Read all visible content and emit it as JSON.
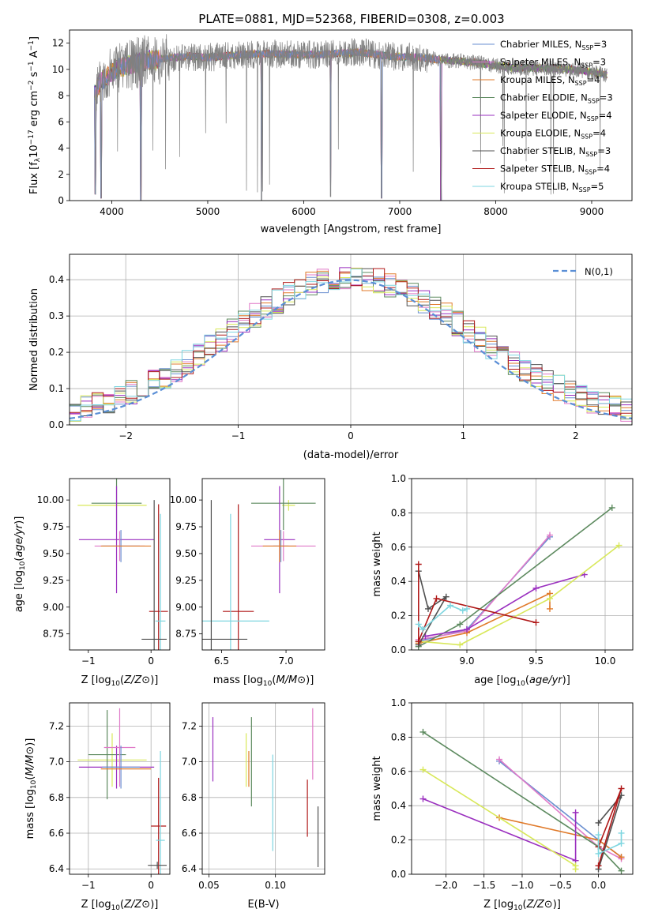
{
  "figure_title": "PLATE=0881, MJD=52368, FIBERID=0308, z=0.003",
  "colors": {
    "chabrier_miles": "#6a8fd0",
    "salpeter_miles": "#e07ac8",
    "kroupa_miles": "#e07a2a",
    "chabrier_elodie": "#5d8a5f",
    "salpeter_elodie": "#9a2fbf",
    "kroupa_elodie": "#d8e85a",
    "chabrier_stelib": "#505050",
    "salpeter_stelib": "#b01818",
    "kroupa_stelib": "#7ed6e0",
    "data": "#808080",
    "normal": "#5b8fd6"
  },
  "legend_main": [
    {
      "key": "chabrier_miles",
      "label": "Chabrier MILES, N",
      "sub": "SSP",
      "tail": "=3"
    },
    {
      "key": "salpeter_miles",
      "label": "Salpeter MILES, N",
      "sub": "SSP",
      "tail": "=3"
    },
    {
      "key": "kroupa_miles",
      "label": "Kroupa MILES, N",
      "sub": "SSP",
      "tail": "=4"
    },
    {
      "key": "chabrier_elodie",
      "label": "Chabrier ELODIE, N",
      "sub": "SSP",
      "tail": "=3"
    },
    {
      "key": "salpeter_elodie",
      "label": "Salpeter ELODIE, N",
      "sub": "SSP",
      "tail": "=4"
    },
    {
      "key": "kroupa_elodie",
      "label": "Kroupa ELODIE, N",
      "sub": "SSP",
      "tail": "=4"
    },
    {
      "key": "chabrier_stelib",
      "label": "Chabrier STELIB, N",
      "sub": "SSP",
      "tail": "=3"
    },
    {
      "key": "salpeter_stelib",
      "label": "Salpeter STELIB, N",
      "sub": "SSP",
      "tail": "=4"
    },
    {
      "key": "kroupa_stelib",
      "label": "Kroupa STELIB, N",
      "sub": "SSP",
      "tail": "=5"
    }
  ],
  "chart_data": [
    {
      "id": "spectrum",
      "type": "line",
      "xlabel": "wavelength [Angstrom, rest frame]",
      "ylabel_parts": {
        "a": "Flux [f",
        "b": "λ",
        "c": "10",
        "d": "−17",
        "e": " erg cm",
        "f": "−2",
        "g": " s",
        "h": "−1",
        "i": " A",
        "j": "−1",
        "k": "]"
      },
      "xlim": [
        3560,
        9420
      ],
      "ylim": [
        0,
        13
      ],
      "xticks": [
        4000,
        5000,
        6000,
        7000,
        8000,
        9000
      ],
      "yticks": [
        0,
        2,
        4,
        6,
        8,
        10,
        12
      ],
      "continuum": [
        [
          3820,
          8.2
        ],
        [
          3900,
          9.2
        ],
        [
          4000,
          9.8
        ],
        [
          4100,
          10.2
        ],
        [
          4300,
          10.6
        ],
        [
          4500,
          10.8
        ],
        [
          4800,
          11.0
        ],
        [
          5000,
          10.9
        ],
        [
          5300,
          11.1
        ],
        [
          5600,
          11.2
        ],
        [
          6000,
          11.1
        ],
        [
          6300,
          11.2
        ],
        [
          6600,
          11.3
        ],
        [
          6900,
          11.0
        ],
        [
          7200,
          10.9
        ],
        [
          7500,
          10.7
        ],
        [
          7800,
          10.5
        ],
        [
          8200,
          10.1
        ],
        [
          8600,
          10.1
        ],
        [
          8900,
          9.9
        ],
        [
          9150,
          9.6
        ]
      ],
      "absorption_dips": [
        [
          3830,
          0.5
        ],
        [
          3890,
          0.2
        ],
        [
          4305,
          0.0
        ],
        [
          5560,
          0.0
        ],
        [
          6280,
          0.3
        ],
        [
          6810,
          0.2
        ],
        [
          7430,
          0.0
        ]
      ]
    },
    {
      "id": "residuals",
      "type": "step",
      "xlabel": "(data-model)/error",
      "ylabel": "Normed distribution",
      "xlim": [
        -2.5,
        2.5
      ],
      "ylim": [
        0,
        0.47
      ],
      "xticks": [
        -2,
        -1,
        0,
        1,
        2
      ],
      "yticks": [
        0.0,
        0.1,
        0.2,
        0.3,
        0.4
      ],
      "bin_width": 0.1,
      "legend_label": "N(0,1)"
    },
    {
      "id": "age_vs_Z",
      "type": "errorbar",
      "xlabel": "Z [log10(Z/Z⊙)]",
      "ylabel": "age [log10(age/yr)]",
      "xlim": [
        -1.3,
        0.3
      ],
      "ylim": [
        8.6,
        10.2
      ],
      "xticks": [
        -1,
        0
      ],
      "yticks": [
        8.75,
        9.0,
        9.25,
        9.5,
        9.75,
        10.0
      ],
      "points": [
        {
          "s": "kroupa_elodie",
          "x": -0.62,
          "xe": 0.55,
          "y": 9.95,
          "ye": 0.0
        },
        {
          "s": "chabrier_elodie",
          "x": -0.55,
          "xe": 0.4,
          "y": 9.97,
          "ye": 0.25
        },
        {
          "s": "salpeter_elodie",
          "x": -0.55,
          "xe": 0.6,
          "y": 9.63,
          "ye": 0.5
        },
        {
          "s": "salpeter_miles",
          "x": -0.5,
          "xe": 0.4,
          "y": 9.57,
          "ye": 0.14
        },
        {
          "s": "chabrier_miles",
          "x": -0.48,
          "xe": 0.3,
          "y": 9.57,
          "ye": 0.15
        },
        {
          "s": "kroupa_miles",
          "x": -0.4,
          "xe": 0.4,
          "y": 9.57,
          "ye": 0.0
        },
        {
          "s": "salpeter_stelib",
          "x": 0.12,
          "xe": 0.15,
          "y": 8.96,
          "ye": 1.0
        },
        {
          "s": "kroupa_stelib",
          "x": 0.15,
          "xe": 0.08,
          "y": 8.87,
          "ye": 1.0
        },
        {
          "s": "chabrier_stelib",
          "x": 0.05,
          "xe": 0.2,
          "y": 8.7,
          "ye": 1.3
        }
      ]
    },
    {
      "id": "age_vs_mass",
      "type": "errorbar",
      "xlabel": "mass [log10(M/M⊙)]",
      "ylabel": "",
      "xlim": [
        6.35,
        7.3
      ],
      "ylim": [
        8.6,
        10.2
      ],
      "xticks": [
        6.5,
        7.0
      ],
      "yticks": [
        8.75,
        9.0,
        9.25,
        9.5,
        9.75,
        10.0
      ],
      "points": [
        {
          "s": "kroupa_elodie",
          "x": 7.02,
          "xe": 0.05,
          "y": 9.95,
          "ye": 0.05
        },
        {
          "s": "chabrier_elodie",
          "x": 6.98,
          "xe": 0.25,
          "y": 9.97,
          "ye": 0.25
        },
        {
          "s": "salpeter_elodie",
          "x": 6.95,
          "xe": 0.12,
          "y": 9.63,
          "ye": 0.5
        },
        {
          "s": "salpeter_miles",
          "x": 6.98,
          "xe": 0.25,
          "y": 9.57,
          "ye": 0.14
        },
        {
          "s": "chabrier_miles",
          "x": 6.96,
          "xe": 0.06,
          "y": 9.57,
          "ye": 0.15
        },
        {
          "s": "kroupa_miles",
          "x": 6.95,
          "xe": 0.13,
          "y": 9.57,
          "ye": 0.15
        },
        {
          "s": "salpeter_stelib",
          "x": 6.63,
          "xe": 0.12,
          "y": 8.96,
          "ye": 1.0
        },
        {
          "s": "kroupa_stelib",
          "x": 6.57,
          "xe": 0.3,
          "y": 8.87,
          "ye": 1.0
        },
        {
          "s": "chabrier_stelib",
          "x": 6.42,
          "xe": 0.28,
          "y": 8.7,
          "ye": 1.3
        }
      ]
    },
    {
      "id": "weight_vs_age",
      "type": "line",
      "xlabel": "age [log10(age/yr)]",
      "ylabel": "mass weight",
      "xlim": [
        8.6,
        10.2
      ],
      "ylim": [
        0,
        1
      ],
      "xticks": [
        9.0,
        9.5,
        10.0
      ],
      "yticks": [
        0.0,
        0.2,
        0.4,
        0.6,
        0.8,
        1.0
      ],
      "series": [
        {
          "s": "chabrier_miles",
          "pts": [
            [
              8.65,
              0.05
            ],
            [
              9.0,
              0.12
            ],
            [
              9.6,
              0.66
            ]
          ]
        },
        {
          "s": "salpeter_miles",
          "pts": [
            [
              8.65,
              0.06
            ],
            [
              9.0,
              0.11
            ],
            [
              9.6,
              0.67
            ]
          ]
        },
        {
          "s": "kroupa_miles",
          "pts": [
            [
              8.65,
              0.04
            ],
            [
              9.0,
              0.1
            ],
            [
              9.6,
              0.33
            ],
            [
              9.6,
              0.24
            ]
          ]
        },
        {
          "s": "chabrier_elodie",
          "pts": [
            [
              8.65,
              0.02
            ],
            [
              8.95,
              0.15
            ],
            [
              10.05,
              0.83
            ]
          ]
        },
        {
          "s": "salpeter_elodie",
          "pts": [
            [
              8.7,
              0.08
            ],
            [
              9.0,
              0.12
            ],
            [
              9.5,
              0.36
            ],
            [
              9.85,
              0.44
            ]
          ]
        },
        {
          "s": "kroupa_elodie",
          "pts": [
            [
              8.65,
              0.05
            ],
            [
              8.95,
              0.03
            ],
            [
              9.6,
              0.3
            ],
            [
              10.1,
              0.61
            ]
          ]
        },
        {
          "s": "chabrier_stelib",
          "pts": [
            [
              8.65,
              0.46
            ],
            [
              8.72,
              0.24
            ],
            [
              8.85,
              0.31
            ],
            [
              8.65,
              0.03
            ]
          ]
        },
        {
          "s": "salpeter_stelib",
          "pts": [
            [
              8.65,
              0.5
            ],
            [
              8.65,
              0.05
            ],
            [
              8.78,
              0.3
            ],
            [
              9.5,
              0.16
            ]
          ]
        },
        {
          "s": "kroupa_stelib",
          "pts": [
            [
              8.65,
              0.15
            ],
            [
              8.68,
              0.12
            ],
            [
              8.88,
              0.26
            ],
            [
              8.97,
              0.23
            ],
            [
              9.0,
              0.24
            ]
          ]
        }
      ]
    },
    {
      "id": "mass_vs_Z",
      "type": "errorbar",
      "xlabel": "Z [log10(Z/Z⊙)]",
      "ylabel": "mass [log10(M/M⊙)]",
      "xlim": [
        -1.3,
        0.3
      ],
      "ylim": [
        6.37,
        7.33
      ],
      "xticks": [
        -1,
        0
      ],
      "yticks": [
        6.4,
        6.6,
        6.8,
        7.0,
        7.2
      ],
      "points": [
        {
          "s": "kroupa_elodie",
          "x": -0.62,
          "xe": 0.55,
          "y": 7.01,
          "ye": 0.15
        },
        {
          "s": "chabrier_elodie",
          "x": -0.7,
          "xe": 0.3,
          "y": 7.04,
          "ye": 0.25
        },
        {
          "s": "salpeter_elodie",
          "x": -0.55,
          "xe": 0.6,
          "y": 6.97,
          "ye": 0.12
        },
        {
          "s": "salpeter_miles",
          "x": -0.5,
          "xe": 0.25,
          "y": 7.08,
          "ye": 0.22
        },
        {
          "s": "chabrier_miles",
          "x": -0.48,
          "xe": 0.3,
          "y": 6.97,
          "ye": 0.12
        },
        {
          "s": "kroupa_miles",
          "x": -0.4,
          "xe": 0.4,
          "y": 6.96,
          "ye": 0.0
        },
        {
          "s": "salpeter_stelib",
          "x": 0.12,
          "xe": 0.12,
          "y": 6.64,
          "ye": 0.27
        },
        {
          "s": "kroupa_stelib",
          "x": 0.15,
          "xe": 0.07,
          "y": 6.56,
          "ye": 0.5
        },
        {
          "s": "chabrier_stelib",
          "x": 0.1,
          "xe": 0.15,
          "y": 6.42,
          "ye": 0.02
        }
      ]
    },
    {
      "id": "mass_vs_ebv",
      "type": "errorbar",
      "xlabel": "E(B-V)",
      "ylabel": "",
      "xlim": [
        0.045,
        0.137
      ],
      "ylim": [
        6.37,
        7.33
      ],
      "xticks": [
        0.05,
        0.1
      ],
      "yticks": [
        6.4,
        6.6,
        6.8,
        7.0,
        7.2
      ],
      "points": [
        {
          "s": "salpeter_elodie",
          "x": 0.053,
          "xe": 0.0,
          "y": 7.07,
          "ye": 0.18
        },
        {
          "s": "kroupa_elodie",
          "x": 0.078,
          "xe": 0.0,
          "y": 7.01,
          "ye": 0.15
        },
        {
          "s": "kroupa_miles",
          "x": 0.08,
          "xe": 0.0,
          "y": 6.96,
          "ye": 0.1
        },
        {
          "s": "chabrier_elodie",
          "x": 0.082,
          "xe": 0.0,
          "y": 7.0,
          "ye": 0.25
        },
        {
          "s": "kroupa_stelib",
          "x": 0.098,
          "xe": 0.0,
          "y": 6.77,
          "ye": 0.27
        },
        {
          "s": "salpeter_stelib",
          "x": 0.124,
          "xe": 0.0,
          "y": 6.74,
          "ye": 0.16
        },
        {
          "s": "salpeter_miles",
          "x": 0.128,
          "xe": 0.0,
          "y": 7.1,
          "ye": 0.2
        },
        {
          "s": "chabrier_stelib",
          "x": 0.132,
          "xe": 0.0,
          "y": 6.58,
          "ye": 0.17
        }
      ]
    },
    {
      "id": "weight_vs_Z",
      "type": "line",
      "xlabel": "Z [log10(Z/Z⊙)]",
      "ylabel": "mass weight",
      "xlim": [
        -2.45,
        0.45
      ],
      "ylim": [
        0,
        1
      ],
      "xticks": [
        -2.0,
        -1.5,
        -1.0,
        -0.5,
        0.0
      ],
      "yticks": [
        0.0,
        0.2,
        0.4,
        0.6,
        0.8,
        1.0
      ],
      "series": [
        {
          "s": "chabrier_miles",
          "pts": [
            [
              -1.3,
              0.66
            ],
            [
              0.0,
              0.2
            ],
            [
              0.3,
              0.1
            ]
          ]
        },
        {
          "s": "salpeter_miles",
          "pts": [
            [
              -1.3,
              0.67
            ],
            [
              0.0,
              0.16
            ],
            [
              0.3,
              0.09
            ]
          ]
        },
        {
          "s": "kroupa_miles",
          "pts": [
            [
              -1.3,
              0.33
            ],
            [
              0.0,
              0.2
            ],
            [
              0.3,
              0.1
            ]
          ]
        },
        {
          "s": "chabrier_elodie",
          "pts": [
            [
              -2.3,
              0.83
            ],
            [
              0.0,
              0.16
            ],
            [
              0.3,
              0.02
            ]
          ]
        },
        {
          "s": "salpeter_elodie",
          "pts": [
            [
              -2.3,
              0.44
            ],
            [
              -0.3,
              0.08
            ],
            [
              -0.3,
              0.36
            ]
          ]
        },
        {
          "s": "kroupa_elodie",
          "pts": [
            [
              -2.3,
              0.61
            ],
            [
              -0.3,
              0.05
            ],
            [
              -0.3,
              0.03
            ]
          ]
        },
        {
          "s": "chabrier_stelib",
          "pts": [
            [
              0.0,
              0.3
            ],
            [
              0.3,
              0.46
            ],
            [
              0.0,
              0.03
            ]
          ]
        },
        {
          "s": "salpeter_stelib",
          "pts": [
            [
              0.0,
              0.05
            ],
            [
              0.3,
              0.5
            ],
            [
              0.0,
              0.16
            ]
          ]
        },
        {
          "s": "kroupa_stelib",
          "pts": [
            [
              0.0,
              0.23
            ],
            [
              0.0,
              0.12
            ],
            [
              0.3,
              0.18
            ],
            [
              0.3,
              0.24
            ]
          ]
        }
      ]
    }
  ]
}
